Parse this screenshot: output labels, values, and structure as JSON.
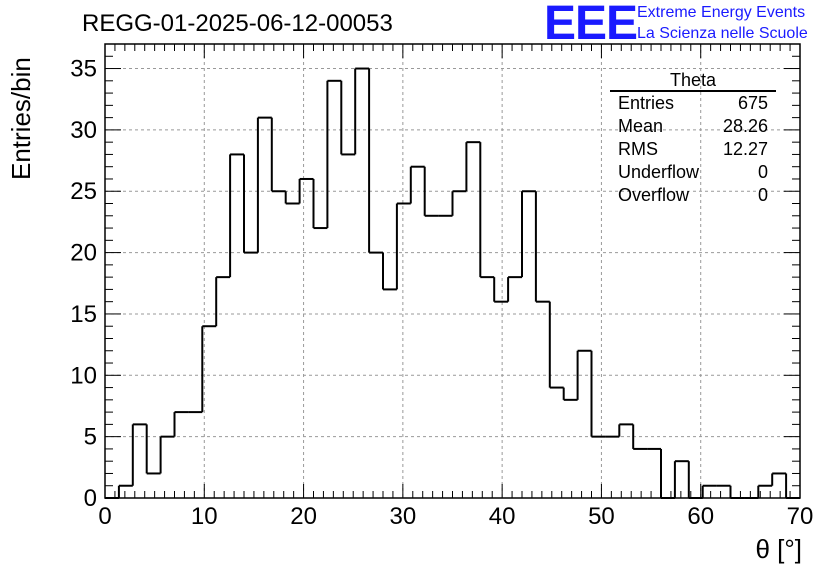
{
  "title": "REGG-01-2025-06-12-00053",
  "logo": {
    "mark": "EEE",
    "line1": "Extreme Energy Events",
    "line2": "La Scienza nelle Scuole"
  },
  "stats": {
    "title": "Theta",
    "rows": [
      {
        "label": "Entries",
        "value": "675"
      },
      {
        "label": "Mean",
        "value": "28.26"
      },
      {
        "label": "RMS",
        "value": "12.27"
      },
      {
        "label": "Underflow",
        "value": "0"
      },
      {
        "label": "Overflow",
        "value": "0"
      }
    ]
  },
  "chart_data": {
    "type": "histogram",
    "xlabel": "θ [°]",
    "ylabel": "Entries/bin",
    "xlim": [
      0,
      70
    ],
    "ylim": [
      0,
      37
    ],
    "xticks": [
      0,
      10,
      20,
      30,
      40,
      50,
      60,
      70
    ],
    "yticks": [
      0,
      5,
      10,
      15,
      20,
      25,
      30,
      35
    ],
    "grid": true,
    "bin_width": 1.4,
    "bin_edges_start": 0,
    "values": [
      0,
      1,
      6,
      2,
      5,
      7,
      7,
      14,
      18,
      28,
      20,
      31,
      25,
      24,
      26,
      22,
      34,
      28,
      35,
      20,
      17,
      24,
      27,
      23,
      23,
      25,
      29,
      18,
      16,
      18,
      25,
      16,
      9,
      8,
      12,
      5,
      5,
      6,
      4,
      4,
      0,
      3,
      0,
      1,
      1,
      0,
      0,
      1,
      2,
      0
    ],
    "line_color": "#000000",
    "grid_color": "#999999"
  }
}
